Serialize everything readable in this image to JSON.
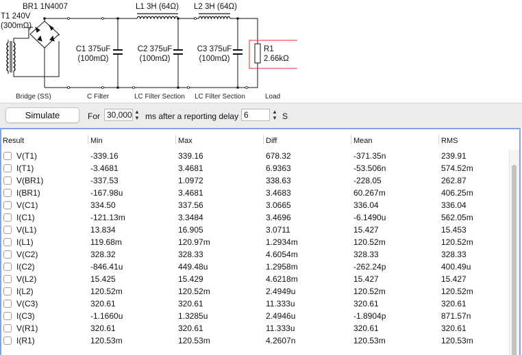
{
  "schematic": {
    "br1": "BR1 1N4007",
    "t1_line1": "T1 240V",
    "t1_line2": "(300mΩ)",
    "l1": "L1 3H (64Ω)",
    "l2": "L2 3H (64Ω)",
    "c1_line1": "C1 375uF",
    "c1_line2": "(100mΩ)",
    "c2_line1": "C2 375uF",
    "c2_line2": "(100mΩ)",
    "c3_line1": "C3 375uF",
    "c3_line2": "(100mΩ)",
    "r1_line1": "R1",
    "r1_line2": "2.66kΩ",
    "sections": [
      "Bridge (SS)",
      "C Filter",
      "LC Filter Section",
      "LC Filter Section",
      "Load"
    ]
  },
  "toolbar": {
    "simulate_label": "Simulate",
    "for_label": "For",
    "duration_value": "30,000",
    "ms_label": "ms after a reporting delay of",
    "delay_value": "6",
    "s_label": "S"
  },
  "results": {
    "columns": [
      "Result",
      "Min",
      "Max",
      "Diff",
      "Mean",
      "RMS"
    ],
    "rows": [
      {
        "name": "V(T1)",
        "min": "-339.16",
        "max": "339.16",
        "diff": "678.32",
        "mean": "-371.35n",
        "rms": "239.91"
      },
      {
        "name": "I(T1)",
        "min": "-3.4681",
        "max": "3.4681",
        "diff": "6.9363",
        "mean": "-53.506n",
        "rms": "574.52m"
      },
      {
        "name": "V(BR1)",
        "min": "-337.53",
        "max": "1.0972",
        "diff": "338.63",
        "mean": "-228.05",
        "rms": "262.87"
      },
      {
        "name": "I(BR1)",
        "min": "-167.98u",
        "max": "3.4681",
        "diff": "3.4683",
        "mean": "60.267m",
        "rms": "406.25m"
      },
      {
        "name": "V(C1)",
        "min": "334.50",
        "max": "337.56",
        "diff": "3.0665",
        "mean": "336.04",
        "rms": "336.04"
      },
      {
        "name": "I(C1)",
        "min": "-121.13m",
        "max": "3.3484",
        "diff": "3.4696",
        "mean": "-6.1490u",
        "rms": "562.05m"
      },
      {
        "name": "V(L1)",
        "min": "13.834",
        "max": "16.905",
        "diff": "3.0711",
        "mean": "15.427",
        "rms": "15.453"
      },
      {
        "name": "I(L1)",
        "min": "119.68m",
        "max": "120.97m",
        "diff": "1.2934m",
        "mean": "120.52m",
        "rms": "120.52m"
      },
      {
        "name": "V(C2)",
        "min": "328.32",
        "max": "328.33",
        "diff": "4.6054m",
        "mean": "328.33",
        "rms": "328.33"
      },
      {
        "name": "I(C2)",
        "min": "-846.41u",
        "max": "449.48u",
        "diff": "1.2958m",
        "mean": "-262.24p",
        "rms": "400.49u"
      },
      {
        "name": "V(L2)",
        "min": "15.425",
        "max": "15.429",
        "diff": "4.6218m",
        "mean": "15.427",
        "rms": "15.427"
      },
      {
        "name": "I(L2)",
        "min": "120.52m",
        "max": "120.52m",
        "diff": "2.4949u",
        "mean": "120.52m",
        "rms": "120.52m"
      },
      {
        "name": "V(C3)",
        "min": "320.61",
        "max": "320.61",
        "diff": "11.333u",
        "mean": "320.61",
        "rms": "320.61"
      },
      {
        "name": "I(C3)",
        "min": "-1.1660u",
        "max": "1.3285u",
        "diff": "2.4946u",
        "mean": "-1.8904p",
        "rms": "871.57n"
      },
      {
        "name": "V(R1)",
        "min": "320.61",
        "max": "320.61",
        "diff": "11.333u",
        "mean": "320.61",
        "rms": "320.61"
      },
      {
        "name": "I(R1)",
        "min": "120.53m",
        "max": "120.53m",
        "diff": "4.2607n",
        "mean": "120.53m",
        "rms": "120.53m"
      }
    ]
  },
  "colors": {
    "accent": "#7aa6e6",
    "load_highlight": "#d83030"
  }
}
